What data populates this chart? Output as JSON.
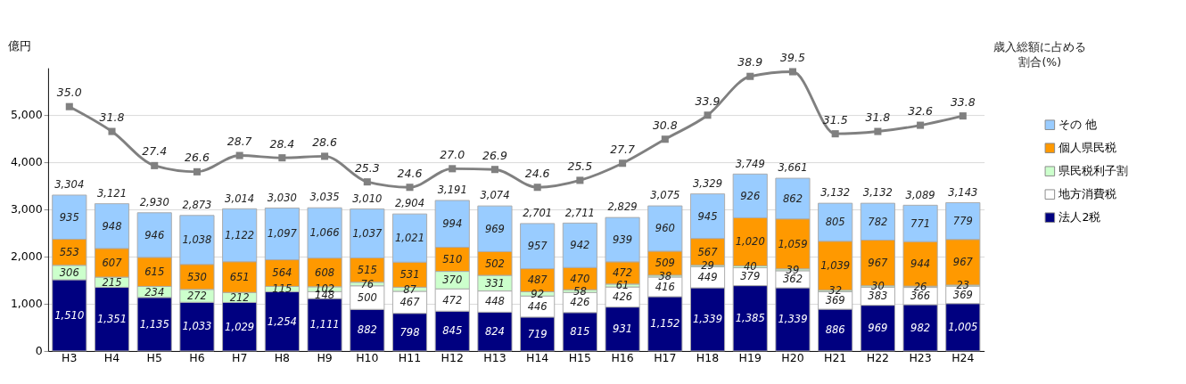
{
  "chart_data": {
    "type": "bar",
    "stacked": true,
    "ylabel": "億円",
    "y2label": "歳入総額に占める割合(%)",
    "categories": [
      "H3",
      "H4",
      "H5",
      "H6",
      "H7",
      "H8",
      "H9",
      "H10",
      "H11",
      "H12",
      "H13",
      "H14",
      "H15",
      "H16",
      "H17",
      "H18",
      "H19",
      "H20",
      "H21",
      "H22",
      "H23",
      "H24"
    ],
    "series": [
      {
        "name": "法人2税",
        "color": "#000080",
        "values": [
          1510,
          1351,
          1135,
          1033,
          1029,
          1254,
          1111,
          882,
          798,
          845,
          824,
          719,
          815,
          931,
          1152,
          1339,
          1385,
          1339,
          886,
          969,
          982,
          1005
        ],
        "value_labels": [
          "1,510",
          "1,351",
          "1,135",
          "1,033",
          "1,029",
          "1,254",
          "1,111",
          "882",
          "798",
          "845",
          "824",
          "719",
          "815",
          "931",
          "1,152",
          "1,339",
          "1,385",
          "1,339",
          "886",
          "969",
          "982",
          "1,005"
        ]
      },
      {
        "name": "地方消費税",
        "color": "#ffffff",
        "values": [
          null,
          null,
          null,
          null,
          null,
          null,
          148,
          500,
          467,
          472,
          448,
          446,
          426,
          426,
          416,
          449,
          379,
          362,
          369,
          383,
          366,
          369
        ],
        "value_labels": [
          null,
          null,
          null,
          null,
          null,
          null,
          "148",
          "500",
          "467",
          "472",
          "448",
          "446",
          "426",
          "426",
          "416",
          "449",
          "379",
          "362",
          "369",
          "383",
          "366",
          "369"
        ]
      },
      {
        "name": "県民税利子割",
        "color": "#ccffcc",
        "values": [
          306,
          215,
          234,
          272,
          212,
          115,
          102,
          76,
          87,
          370,
          331,
          92,
          58,
          61,
          38,
          29,
          40,
          39,
          32,
          30,
          26,
          23
        ],
        "value_labels": [
          "306",
          "215",
          "234",
          "272",
          "212",
          "115",
          "102",
          "76",
          "87",
          "370",
          "331",
          "92",
          "58",
          "61",
          "38",
          "29",
          "40",
          "39",
          "32",
          "30",
          "26",
          "23"
        ]
      },
      {
        "name": "個人県民税",
        "color": "#ff9900",
        "values": [
          553,
          607,
          615,
          530,
          651,
          564,
          608,
          515,
          531,
          510,
          502,
          487,
          470,
          472,
          509,
          567,
          1020,
          1059,
          1039,
          967,
          944,
          967
        ],
        "value_labels": [
          "553",
          "607",
          "615",
          "530",
          "651",
          "564",
          "608",
          "515",
          "531",
          "510",
          "502",
          "487",
          "470",
          "472",
          "509",
          "567",
          "1,020",
          "1,059",
          "1,039",
          "967",
          "944",
          "967"
        ]
      },
      {
        "name": "その 他",
        "color": "#99ccff",
        "values": [
          935,
          948,
          946,
          1038,
          1122,
          1097,
          1066,
          1037,
          1021,
          994,
          969,
          957,
          942,
          939,
          960,
          945,
          926,
          862,
          805,
          782,
          771,
          779
        ],
        "value_labels": [
          "935",
          "948",
          "946",
          "1,038",
          "1,122",
          "1,097",
          "1,066",
          "1,037",
          "1,021",
          "994",
          "969",
          "957",
          "942",
          "939",
          "960",
          "945",
          "926",
          "862",
          "805",
          "782",
          "771",
          "779"
        ]
      },
      {
        "type": "line",
        "axis": "y2",
        "color": "#808080",
        "marker": "square",
        "values": [
          35.0,
          31.8,
          27.4,
          26.6,
          28.7,
          28.4,
          28.6,
          25.3,
          24.6,
          27.0,
          26.9,
          24.6,
          25.5,
          27.7,
          30.8,
          33.9,
          38.9,
          39.5,
          31.5,
          31.8,
          32.6,
          33.8
        ],
        "value_labels": [
          "35.0",
          "31.8",
          "27.4",
          "26.6",
          "28.7",
          "28.4",
          "28.6",
          "25.3",
          "24.6",
          "27.0",
          "26.9",
          "24.6",
          "25.5",
          "27.7",
          "30.8",
          "33.9",
          "38.9",
          "39.5",
          "31.5",
          "31.8",
          "32.6",
          "33.8"
        ]
      }
    ],
    "totals": [
      "3,304",
      "3,121",
      "2,930",
      "2,873",
      "3,014",
      "3,030",
      "3,035",
      "3,010",
      "2,904",
      "3,191",
      "3,074",
      "2,701",
      "2,711",
      "2,829",
      "3,075",
      "3,329",
      "3,749",
      "3,661",
      "3,132",
      "3,132",
      "3,089",
      "3,143"
    ],
    "ylim": [
      0,
      6000
    ],
    "yticks": [
      0,
      {
        "value": 1000,
        "label": "1,000"
      },
      {
        "value": 2000,
        "label": "2,000"
      },
      {
        "value": 3000,
        "label": "3,000"
      },
      {
        "value": 4000,
        "label": "4,000"
      },
      {
        "value": 5000,
        "label": "5,000"
      }
    ],
    "y2lim": [
      3.5,
      40
    ],
    "grid": "y",
    "legend": "right"
  }
}
